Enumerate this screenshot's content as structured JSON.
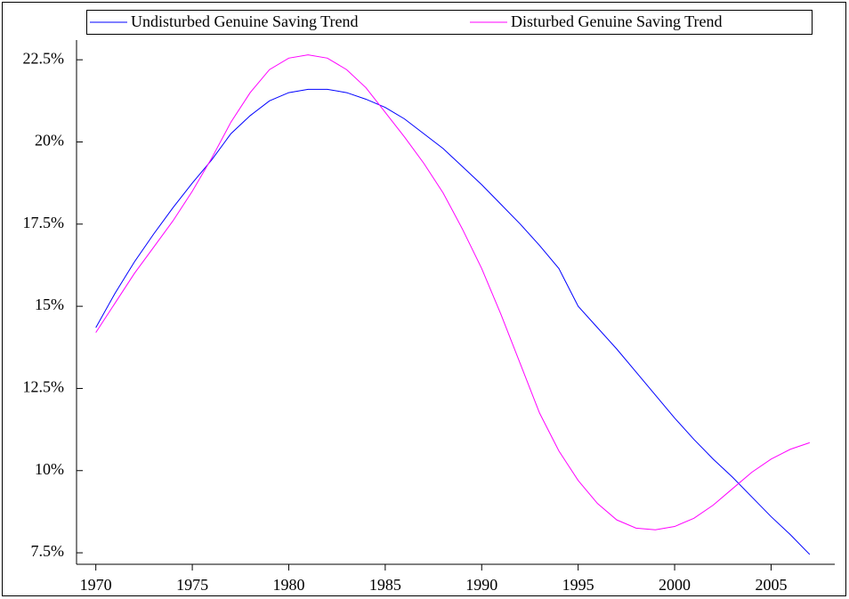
{
  "chart_data": {
    "type": "line",
    "x": [
      1970,
      1971,
      1972,
      1973,
      1974,
      1975,
      1976,
      1977,
      1978,
      1979,
      1980,
      1981,
      1982,
      1983,
      1984,
      1985,
      1986,
      1987,
      1988,
      1989,
      1990,
      1991,
      1992,
      1993,
      1994,
      1995,
      1996,
      1997,
      1998,
      1999,
      2000,
      2001,
      2002,
      2003,
      2004,
      2005,
      2006,
      2007
    ],
    "series": [
      {
        "name": "Undisturbed Genuine Saving Trend",
        "color": "#0000ff",
        "values": [
          14.35,
          15.4,
          16.35,
          17.2,
          18.0,
          18.75,
          19.45,
          20.25,
          20.8,
          21.25,
          21.5,
          21.6,
          21.6,
          21.5,
          21.3,
          21.05,
          20.7,
          20.25,
          19.8,
          19.25,
          18.7,
          18.1,
          17.5,
          16.85,
          16.15,
          15.0,
          14.35,
          13.7,
          13.0,
          12.3,
          11.6,
          10.95,
          10.35,
          9.8,
          9.2,
          8.6,
          8.05,
          7.45
        ]
      },
      {
        "name": "Disturbed Genuine Saving Trend",
        "color": "#ff00ff",
        "values": [
          14.2,
          15.1,
          16.0,
          16.8,
          17.6,
          18.5,
          19.5,
          20.6,
          21.5,
          22.2,
          22.55,
          22.65,
          22.55,
          22.2,
          21.65,
          20.9,
          20.15,
          19.35,
          18.45,
          17.35,
          16.15,
          14.75,
          13.25,
          11.75,
          10.6,
          9.7,
          9.0,
          8.5,
          8.25,
          8.2,
          8.3,
          8.55,
          8.95,
          9.45,
          9.95,
          10.35,
          10.65,
          10.85
        ]
      }
    ],
    "xlim": [
      1969,
      2008.3
    ],
    "xticks": [
      1970,
      1975,
      1980,
      1985,
      1990,
      1995,
      2000,
      2005
    ],
    "ylim": [
      7.15,
      23.1
    ],
    "yticks": [
      {
        "value": 7.5,
        "label": "7.5%"
      },
      {
        "value": 10,
        "label": "10%"
      },
      {
        "value": 12.5,
        "label": "12.5%"
      },
      {
        "value": 15,
        "label": "15%"
      },
      {
        "value": 17.5,
        "label": "17.5%"
      },
      {
        "value": 20,
        "label": "20%"
      },
      {
        "value": 22.5,
        "label": "22.5%"
      }
    ],
    "grid": false
  }
}
